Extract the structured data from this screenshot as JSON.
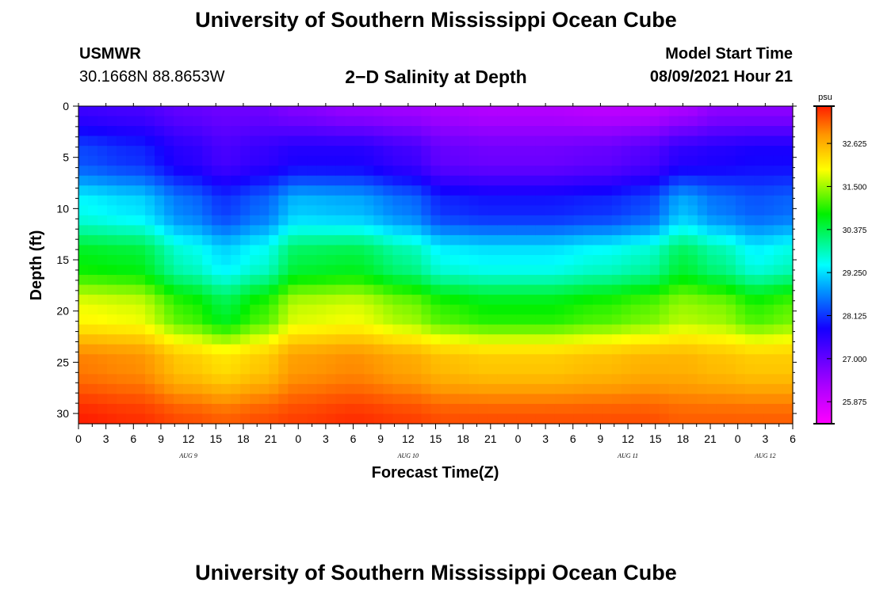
{
  "header": {
    "top_title": "University of Southern Mississippi Ocean Cube",
    "bottom_title": "University of Southern Mississippi Ocean Cube",
    "station_name": "USMWR",
    "station_coords": "30.1668N  88.8653W",
    "chart_title": "2-D Salinity at Depth",
    "model_start_label": "Model Start Time",
    "model_start_value": "08/09/2021 Hour 21"
  },
  "chart_data": {
    "type": "heatmap",
    "title": "2-D Salinity at Depth",
    "xlabel": "Forecast Time(Z)",
    "ylabel": "Depth (ft)",
    "x_tick_labels": [
      "0",
      "3",
      "6",
      "9",
      "12",
      "15",
      "18",
      "21",
      "0",
      "3",
      "6",
      "9",
      "12",
      "15",
      "18",
      "21",
      "0",
      "3",
      "6",
      "9",
      "12",
      "15",
      "18",
      "21",
      "0",
      "3",
      "6"
    ],
    "x_date_labels": [
      {
        "label": "AUG 9",
        "tick_index": 4
      },
      {
        "label": "AUG 10",
        "tick_index": 12
      },
      {
        "label": "AUG 11",
        "tick_index": 20
      },
      {
        "label": "AUG 12",
        "tick_index": 25
      }
    ],
    "x_range_hours": [
      0,
      78
    ],
    "y_tick_labels": [
      "0",
      "5",
      "10",
      "15",
      "20",
      "25",
      "30"
    ],
    "y_ticks": [
      0,
      5,
      10,
      15,
      20,
      25,
      30
    ],
    "ylim": [
      0,
      31
    ],
    "y_inverted": true,
    "colorbar": {
      "unit": "psu",
      "ticks": [
        "25.875",
        "27.000",
        "28.125",
        "29.250",
        "30.375",
        "31.500",
        "32.625"
      ],
      "range": [
        25.3,
        33.6
      ]
    },
    "time_hours": [
      0,
      6,
      12,
      16,
      20,
      24,
      30,
      36,
      40,
      45,
      51,
      57,
      62,
      66,
      70,
      74,
      78
    ],
    "depth_ft": [
      0,
      5,
      10,
      15,
      20,
      25,
      31
    ],
    "values": [
      [
        27.4,
        28.3,
        29.5,
        30.7,
        31.9,
        33.0,
        33.6
      ],
      [
        27.3,
        28.1,
        29.3,
        30.6,
        31.8,
        32.9,
        33.5
      ],
      [
        27.0,
        27.6,
        28.6,
        29.7,
        31.0,
        32.4,
        33.3
      ],
      [
        26.9,
        27.3,
        28.2,
        29.3,
        30.5,
        32.2,
        33.2
      ],
      [
        26.9,
        27.5,
        28.5,
        29.6,
        31.0,
        32.4,
        33.3
      ],
      [
        26.7,
        27.7,
        29.1,
        30.4,
        31.7,
        32.8,
        33.4
      ],
      [
        26.5,
        27.7,
        29.0,
        30.5,
        31.8,
        32.9,
        33.5
      ],
      [
        26.4,
        27.4,
        28.6,
        30.0,
        31.4,
        32.7,
        33.4
      ],
      [
        26.3,
        27.0,
        28.1,
        29.5,
        31.0,
        32.5,
        33.3
      ],
      [
        26.2,
        26.9,
        28.0,
        29.4,
        30.8,
        32.4,
        33.3
      ],
      [
        26.2,
        26.9,
        28.0,
        29.4,
        30.8,
        32.4,
        33.3
      ],
      [
        26.1,
        27.0,
        28.1,
        29.6,
        31.0,
        32.5,
        33.3
      ],
      [
        26.1,
        27.2,
        28.3,
        29.8,
        31.2,
        32.6,
        33.3
      ],
      [
        26.3,
        27.6,
        29.0,
        30.4,
        31.5,
        32.6,
        33.2
      ],
      [
        26.6,
        27.7,
        28.6,
        30.0,
        31.4,
        32.5,
        33.2
      ],
      [
        26.6,
        27.8,
        28.4,
        29.5,
        31.0,
        32.4,
        33.2
      ],
      [
        26.6,
        27.8,
        28.5,
        29.7,
        31.2,
        32.4,
        33.2
      ]
    ]
  }
}
